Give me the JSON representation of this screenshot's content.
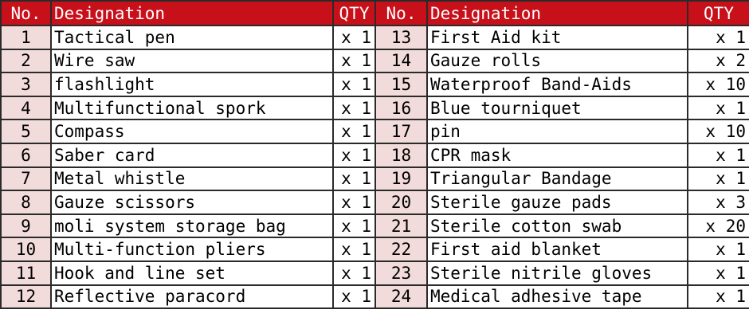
{
  "headers": {
    "no": "No.",
    "designation": "Designation",
    "qty": "QTY"
  },
  "colors": {
    "header_bg": "#c8101a",
    "number_cell_bg": "#f2dcdb"
  },
  "rows": [
    {
      "no": "1",
      "name": "Tactical pen",
      "qty": "x 1",
      "no2": "13",
      "name2": "First Aid kit",
      "qty2": "x 1"
    },
    {
      "no": "2",
      "name": "Wire saw",
      "qty": "x 1",
      "no2": "14",
      "name2": "Gauze rolls",
      "qty2": "x 2"
    },
    {
      "no": "3",
      "name": "flashlight",
      "qty": "x 1",
      "no2": "15",
      "name2": "Waterproof Band-Aids",
      "qty2": "x 10"
    },
    {
      "no": "4",
      "name": "Multifunctional spork",
      "qty": "x 1",
      "no2": "16",
      "name2": "Blue tourniquet",
      "qty2": "x 1"
    },
    {
      "no": "5",
      "name": "Compass",
      "qty": "x 1",
      "no2": "17",
      "name2": "pin",
      "qty2": "x 10"
    },
    {
      "no": "6",
      "name": "Saber card",
      "qty": "x 1",
      "no2": "18",
      "name2": "CPR mask",
      "qty2": "x 1"
    },
    {
      "no": "7",
      "name": "Metal whistle",
      "qty": "x 1",
      "no2": "19",
      "name2": "Triangular Bandage",
      "qty2": "x 1"
    },
    {
      "no": "8",
      "name": "Gauze scissors",
      "qty": "x 1",
      "no2": "20",
      "name2": "Sterile gauze pads",
      "qty2": "x 3"
    },
    {
      "no": "9",
      "name": "moli system storage bag",
      "qty": "x 1",
      "no2": "21",
      "name2": "Sterile cotton swab",
      "qty2": "x 20"
    },
    {
      "no": "10",
      "name": "Multi-function pliers",
      "qty": "x 1",
      "no2": "22",
      "name2": "First aid blanket",
      "qty2": "x 1"
    },
    {
      "no": "11",
      "name": "Hook and line set",
      "qty": "x 1",
      "no2": "23",
      "name2": "Sterile nitrile gloves",
      "qty2": "x 1"
    },
    {
      "no": "12",
      "name": "Reflective paracord",
      "qty": "x 1",
      "no2": "24",
      "name2": "Medical adhesive tape",
      "qty2": "x 1"
    }
  ]
}
